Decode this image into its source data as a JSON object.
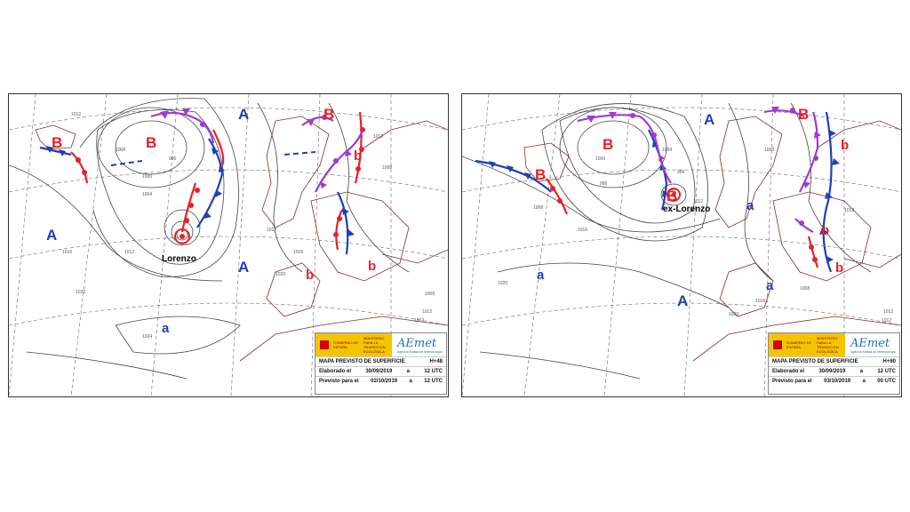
{
  "maps": [
    {
      "pressure_labels": [
        {
          "text": "B",
          "color": "#e8202a"
        },
        {
          "text": "B",
          "color": "#e8202a"
        },
        {
          "text": "B",
          "color": "#e8202a"
        },
        {
          "text": "A",
          "color": "#1f3fb5"
        },
        {
          "text": "A",
          "color": "#1f3fb5"
        },
        {
          "text": "A",
          "color": "#1f3fb5"
        },
        {
          "text": "b",
          "color": "#e8202a"
        },
        {
          "text": "b",
          "color": "#e8202a"
        },
        {
          "text": "b",
          "color": "#e8202a"
        },
        {
          "text": "a",
          "color": "#1f3fb5"
        }
      ],
      "storm_name": "Lorenzo",
      "isobar_labels": [
        "1012",
        "1008",
        "1004",
        "1000",
        "996",
        "1012",
        "1016",
        "1020",
        "1024",
        "1012",
        "1008",
        "1012",
        "1016",
        "1020",
        "1012",
        "1008",
        "1012"
      ],
      "legend": {
        "government": "GOBIERNO DE ESPAÑA",
        "ministry": "MINISTERIO PARA LA TRANSICIÓN ECOLÓGICA",
        "brand": "AEmet",
        "brand_sub": "Agencia Estatal de Meteorología",
        "title": "MAPA PREVISTO DE SUPERFICIE",
        "forecast_hour": "H+48",
        "made_label": "Elaborado el",
        "made_date": "30/09/2019",
        "made_at": "a",
        "made_time": "12 UTC",
        "valid_label": "Previsto para el",
        "valid_date": "02/10/2019",
        "valid_at": "a",
        "valid_time": "12 UTC"
      }
    },
    {
      "pressure_labels": [
        {
          "text": "B",
          "color": "#e8202a"
        },
        {
          "text": "B",
          "color": "#e8202a"
        },
        {
          "text": "B",
          "color": "#e8202a"
        },
        {
          "text": "B",
          "color": "#e8202a"
        },
        {
          "text": "A",
          "color": "#1f3fb5"
        },
        {
          "text": "A",
          "color": "#1f3fb5"
        },
        {
          "text": "a",
          "color": "#1f3fb5"
        },
        {
          "text": "a",
          "color": "#1f3fb5"
        },
        {
          "text": "a",
          "color": "#1f3fb5"
        },
        {
          "text": "b",
          "color": "#e8202a"
        },
        {
          "text": "b",
          "color": "#e8202a"
        },
        {
          "text": "b",
          "color": "#e8202a"
        }
      ],
      "storm_name": "ex-Lorenzo",
      "isobar_labels": [
        "990",
        "996",
        "1000",
        "1004",
        "1008",
        "1012",
        "1016",
        "1020",
        "1008",
        "1012",
        "1016",
        "1020",
        "1012",
        "1008",
        "1012"
      ],
      "legend": {
        "government": "GOBIERNO DE ESPAÑA",
        "ministry": "MINISTERIO PARA LA TRANSICIÓN ECOLÓGICA",
        "brand": "AEmet",
        "brand_sub": "Agencia Estatal de Meteorología",
        "title": "MAPA PREVISTO DE SUPERFICIE",
        "forecast_hour": "H+60",
        "made_label": "Elaborado el",
        "made_date": "30/09/2019",
        "made_at": "a",
        "made_time": "12 UTC",
        "valid_label": "Previsto para el",
        "valid_date": "03/10/2019",
        "valid_at": "a",
        "valid_time": "00 UTC"
      }
    }
  ]
}
